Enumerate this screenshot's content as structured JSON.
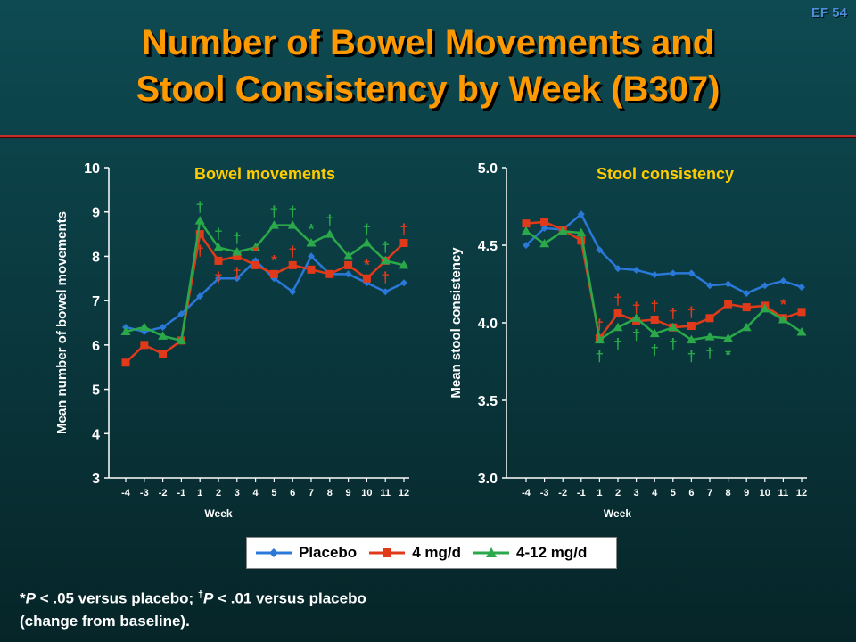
{
  "slide_id": "EF 54",
  "title_line1": "Number of Bowel Movements and",
  "title_line2": "Stool Consistency by Week (B307)",
  "legend": {
    "placebo": "Placebo",
    "dose4": "4 mg/d",
    "dose412": "4-12 mg/d"
  },
  "footnote": {
    "sym1": "*",
    "p1": "P",
    "t1": " < .05 versus placebo; ",
    "sym2": "†",
    "p2": "P",
    "t2": " < .01 versus placebo",
    "line2": "(change from baseline)."
  },
  "colors": {
    "placebo": "#2a78d8",
    "dose4": "#e03a1a",
    "dose412": "#2aa84a",
    "dagger_red": "#e03a1a",
    "dagger_green": "#2aa84a",
    "white": "#ffffff"
  },
  "chart_data": [
    {
      "type": "line",
      "title": "Bowel movements",
      "xlabel": "Week",
      "ylabel": "Mean number of bowel movements",
      "ylim": [
        3,
        10
      ],
      "yticks": [
        "3",
        "4",
        "5",
        "6",
        "7",
        "8",
        "9",
        "10"
      ],
      "x": [
        "-4",
        "-3",
        "-2",
        "-1",
        "1",
        "2",
        "3",
        "4",
        "5",
        "6",
        "7",
        "8",
        "9",
        "10",
        "11",
        "12"
      ],
      "series": [
        {
          "name": "Placebo",
          "values": [
            6.4,
            6.3,
            6.4,
            6.7,
            7.1,
            7.5,
            7.5,
            7.9,
            7.5,
            7.2,
            8.0,
            7.6,
            7.6,
            7.4,
            7.2,
            7.4
          ]
        },
        {
          "name": "4 mg/d",
          "values": [
            5.6,
            6.0,
            5.8,
            6.1,
            8.5,
            7.9,
            8.0,
            7.8,
            7.6,
            7.8,
            7.7,
            7.6,
            7.8,
            7.5,
            7.9,
            8.3
          ]
        },
        {
          "name": "4-12 mg/d",
          "values": [
            6.3,
            6.4,
            6.2,
            6.1,
            8.8,
            8.2,
            8.1,
            8.2,
            8.7,
            8.7,
            8.3,
            8.5,
            8.0,
            8.3,
            7.9,
            7.8
          ]
        }
      ],
      "annotations": [
        {
          "text": "†",
          "series": "4-12 mg/d",
          "x": "1",
          "pos": "above"
        },
        {
          "text": "†",
          "series": "4 mg/d",
          "x": "1",
          "pos": "below"
        },
        {
          "text": "†",
          "series": "4-12 mg/d",
          "x": "2",
          "pos": "above"
        },
        {
          "text": "†",
          "series": "4 mg/d",
          "x": "2",
          "pos": "below"
        },
        {
          "text": "†",
          "series": "4-12 mg/d",
          "x": "3",
          "pos": "above"
        },
        {
          "text": "†",
          "series": "4 mg/d",
          "x": "3",
          "pos": "below"
        },
        {
          "text": "*",
          "series": "4 mg/d",
          "x": "4",
          "pos": "above"
        },
        {
          "text": "*",
          "series": "4 mg/d",
          "x": "5",
          "pos": "above"
        },
        {
          "text": "†",
          "series": "4-12 mg/d",
          "x": "5",
          "pos": "above"
        },
        {
          "text": "†",
          "series": "4-12 mg/d",
          "x": "6",
          "pos": "above"
        },
        {
          "text": "†",
          "series": "4 mg/d",
          "x": "6",
          "pos": "above"
        },
        {
          "text": "*",
          "series": "4-12 mg/d",
          "x": "7",
          "pos": "above"
        },
        {
          "text": "†",
          "series": "4-12 mg/d",
          "x": "8",
          "pos": "above"
        },
        {
          "text": "†",
          "series": "4-12 mg/d",
          "x": "10",
          "pos": "above"
        },
        {
          "text": "*",
          "series": "4 mg/d",
          "x": "10",
          "pos": "above"
        },
        {
          "text": "†",
          "series": "4-12 mg/d",
          "x": "11",
          "pos": "above"
        },
        {
          "text": "†",
          "series": "4 mg/d",
          "x": "11",
          "pos": "below"
        },
        {
          "text": "†",
          "series": "4 mg/d",
          "x": "12",
          "pos": "above"
        }
      ]
    },
    {
      "type": "line",
      "title": "Stool consistency",
      "xlabel": "Week",
      "ylabel": "Mean stool consistency",
      "ylim": [
        3.0,
        5.0
      ],
      "yticks": [
        "3.0",
        "3.5",
        "4.0",
        "4.5",
        "5.0"
      ],
      "x": [
        "-4",
        "-3",
        "-2",
        "-1",
        "1",
        "2",
        "3",
        "4",
        "5",
        "6",
        "7",
        "8",
        "9",
        "10",
        "11",
        "12"
      ],
      "series": [
        {
          "name": "Placebo",
          "values": [
            4.5,
            4.61,
            4.6,
            4.7,
            4.47,
            4.35,
            4.34,
            4.31,
            4.32,
            4.32,
            4.24,
            4.25,
            4.19,
            4.24,
            4.27,
            4.23
          ]
        },
        {
          "name": "4 mg/d",
          "values": [
            4.64,
            4.65,
            4.6,
            4.53,
            3.9,
            4.06,
            4.01,
            4.02,
            3.97,
            3.98,
            4.03,
            4.12,
            4.1,
            4.11,
            4.03,
            4.07
          ]
        },
        {
          "name": "4-12 mg/d",
          "values": [
            4.59,
            4.51,
            4.59,
            4.58,
            3.89,
            3.97,
            4.03,
            3.93,
            3.97,
            3.89,
            3.91,
            3.9,
            3.97,
            4.09,
            4.02,
            3.94
          ]
        }
      ],
      "annotations": [
        {
          "text": "†",
          "series": "4 mg/d",
          "x": "1",
          "pos": "above"
        },
        {
          "text": "†",
          "series": "4-12 mg/d",
          "x": "1",
          "pos": "below"
        },
        {
          "text": "†",
          "series": "4 mg/d",
          "x": "2",
          "pos": "above"
        },
        {
          "text": "†",
          "series": "4-12 mg/d",
          "x": "2",
          "pos": "below"
        },
        {
          "text": "†",
          "series": "4 mg/d",
          "x": "3",
          "pos": "above"
        },
        {
          "text": "†",
          "series": "4-12 mg/d",
          "x": "3",
          "pos": "below"
        },
        {
          "text": "†",
          "series": "4 mg/d",
          "x": "4",
          "pos": "above"
        },
        {
          "text": "†",
          "series": "4-12 mg/d",
          "x": "4",
          "pos": "below"
        },
        {
          "text": "†",
          "series": "4 mg/d",
          "x": "5",
          "pos": "above"
        },
        {
          "text": "†",
          "series": "4-12 mg/d",
          "x": "5",
          "pos": "below"
        },
        {
          "text": "†",
          "series": "4 mg/d",
          "x": "6",
          "pos": "above"
        },
        {
          "text": "†",
          "series": "4-12 mg/d",
          "x": "6",
          "pos": "below"
        },
        {
          "text": "†",
          "series": "4-12 mg/d",
          "x": "7",
          "pos": "below"
        },
        {
          "text": "*",
          "series": "4-12 mg/d",
          "x": "8",
          "pos": "below"
        },
        {
          "text": "*",
          "series": "4 mg/d",
          "x": "11",
          "pos": "above"
        }
      ]
    }
  ]
}
